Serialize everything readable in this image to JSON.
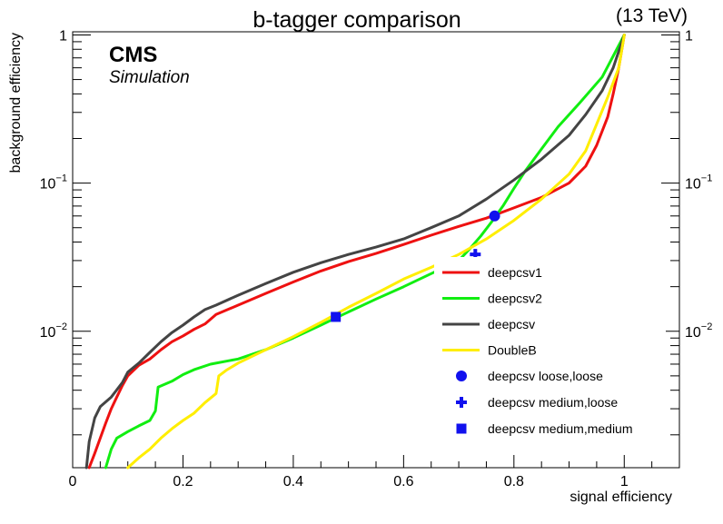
{
  "chart_data": {
    "type": "line",
    "title": "b-tagger comparison",
    "energy_label": "(13 TeV)",
    "experiment": "CMS",
    "subtitle": "Simulation",
    "xlabel": "signal efficiency",
    "ylabel": "background efficiency",
    "xlim": [
      0,
      1.1
    ],
    "ylim": [
      0.0012,
      1.05
    ],
    "yscale": "log",
    "legend_position": "bottom-right",
    "x_ticks": [
      0,
      0.2,
      0.4,
      0.6,
      0.8,
      1
    ],
    "x_tick_labels": [
      "0",
      "0.2",
      "0.4",
      "0.6",
      "0.8",
      "1"
    ],
    "y_ticks": [
      {
        "value": 1,
        "base": "1",
        "exp": ""
      },
      {
        "value": 0.1,
        "base": "10",
        "exp": "−1"
      },
      {
        "value": 0.01,
        "base": "10",
        "exp": "−2"
      }
    ],
    "series": [
      {
        "name": "deepcsv1",
        "color": "#ee1111",
        "points": [
          [
            0.03,
            0.0012
          ],
          [
            0.04,
            0.0015
          ],
          [
            0.05,
            0.0019
          ],
          [
            0.06,
            0.0024
          ],
          [
            0.07,
            0.003
          ],
          [
            0.08,
            0.0036
          ],
          [
            0.09,
            0.0043
          ],
          [
            0.1,
            0.005
          ],
          [
            0.12,
            0.0059
          ],
          [
            0.14,
            0.0065
          ],
          [
            0.16,
            0.0075
          ],
          [
            0.18,
            0.0085
          ],
          [
            0.2,
            0.0093
          ],
          [
            0.22,
            0.0103
          ],
          [
            0.24,
            0.0112
          ],
          [
            0.26,
            0.013
          ],
          [
            0.3,
            0.015
          ],
          [
            0.35,
            0.018
          ],
          [
            0.4,
            0.0215
          ],
          [
            0.45,
            0.0255
          ],
          [
            0.5,
            0.0295
          ],
          [
            0.55,
            0.0335
          ],
          [
            0.6,
            0.0385
          ],
          [
            0.65,
            0.0445
          ],
          [
            0.7,
            0.051
          ],
          [
            0.75,
            0.058
          ],
          [
            0.8,
            0.068
          ],
          [
            0.85,
            0.08
          ],
          [
            0.9,
            0.1
          ],
          [
            0.93,
            0.13
          ],
          [
            0.95,
            0.18
          ],
          [
            0.97,
            0.28
          ],
          [
            0.98,
            0.4
          ],
          [
            0.99,
            0.6
          ],
          [
            1.0,
            1.0
          ]
        ]
      },
      {
        "name": "deepcsv2",
        "color": "#11ee11",
        "points": [
          [
            0.06,
            0.0012
          ],
          [
            0.07,
            0.0016
          ],
          [
            0.08,
            0.0019
          ],
          [
            0.1,
            0.0021
          ],
          [
            0.12,
            0.0023
          ],
          [
            0.14,
            0.0025
          ],
          [
            0.15,
            0.0029
          ],
          [
            0.155,
            0.0042
          ],
          [
            0.18,
            0.0046
          ],
          [
            0.2,
            0.0051
          ],
          [
            0.22,
            0.0055
          ],
          [
            0.25,
            0.006
          ],
          [
            0.3,
            0.0065
          ],
          [
            0.35,
            0.0075
          ],
          [
            0.4,
            0.009
          ],
          [
            0.45,
            0.011
          ],
          [
            0.5,
            0.0135
          ],
          [
            0.55,
            0.0165
          ],
          [
            0.6,
            0.02
          ],
          [
            0.65,
            0.0245
          ],
          [
            0.7,
            0.03
          ],
          [
            0.72,
            0.036
          ],
          [
            0.74,
            0.044
          ],
          [
            0.76,
            0.055
          ],
          [
            0.78,
            0.07
          ],
          [
            0.8,
            0.092
          ],
          [
            0.82,
            0.12
          ],
          [
            0.85,
            0.17
          ],
          [
            0.88,
            0.24
          ],
          [
            0.92,
            0.35
          ],
          [
            0.96,
            0.52
          ],
          [
            1.0,
            1.0
          ]
        ]
      },
      {
        "name": "deepcsv",
        "color": "#444444",
        "points": [
          [
            0.025,
            0.0012
          ],
          [
            0.03,
            0.0018
          ],
          [
            0.04,
            0.0026
          ],
          [
            0.05,
            0.0031
          ],
          [
            0.07,
            0.0036
          ],
          [
            0.09,
            0.0045
          ],
          [
            0.1,
            0.0053
          ],
          [
            0.12,
            0.0061
          ],
          [
            0.14,
            0.0072
          ],
          [
            0.16,
            0.0085
          ],
          [
            0.18,
            0.0098
          ],
          [
            0.2,
            0.011
          ],
          [
            0.22,
            0.0125
          ],
          [
            0.24,
            0.014
          ],
          [
            0.26,
            0.015
          ],
          [
            0.3,
            0.0175
          ],
          [
            0.35,
            0.021
          ],
          [
            0.4,
            0.025
          ],
          [
            0.45,
            0.029
          ],
          [
            0.5,
            0.033
          ],
          [
            0.55,
            0.037
          ],
          [
            0.6,
            0.042
          ],
          [
            0.65,
            0.05
          ],
          [
            0.7,
            0.06
          ],
          [
            0.75,
            0.078
          ],
          [
            0.8,
            0.105
          ],
          [
            0.85,
            0.145
          ],
          [
            0.9,
            0.21
          ],
          [
            0.93,
            0.29
          ],
          [
            0.96,
            0.42
          ],
          [
            0.98,
            0.6
          ],
          [
            1.0,
            1.0
          ]
        ]
      },
      {
        "name": "DoubleB",
        "color": "#ffee00",
        "points": [
          [
            0.1,
            0.0012
          ],
          [
            0.12,
            0.0014
          ],
          [
            0.14,
            0.0016
          ],
          [
            0.16,
            0.0019
          ],
          [
            0.18,
            0.0022
          ],
          [
            0.2,
            0.0025
          ],
          [
            0.22,
            0.0028
          ],
          [
            0.24,
            0.0033
          ],
          [
            0.26,
            0.0038
          ],
          [
            0.265,
            0.005
          ],
          [
            0.28,
            0.0055
          ],
          [
            0.3,
            0.0061
          ],
          [
            0.35,
            0.0075
          ],
          [
            0.4,
            0.0092
          ],
          [
            0.45,
            0.0115
          ],
          [
            0.5,
            0.0145
          ],
          [
            0.55,
            0.018
          ],
          [
            0.6,
            0.0225
          ],
          [
            0.65,
            0.027
          ],
          [
            0.7,
            0.033
          ],
          [
            0.75,
            0.042
          ],
          [
            0.8,
            0.056
          ],
          [
            0.85,
            0.078
          ],
          [
            0.9,
            0.115
          ],
          [
            0.93,
            0.165
          ],
          [
            0.95,
            0.25
          ],
          [
            0.97,
            0.38
          ],
          [
            0.99,
            0.6
          ],
          [
            1.0,
            1.0
          ]
        ]
      }
    ],
    "markers": [
      {
        "name": "deepcsv loose,loose",
        "shape": "circle",
        "color": "#1111ee",
        "x": 0.765,
        "y": 0.06
      },
      {
        "name": "deepcsv medium,loose",
        "shape": "cross",
        "color": "#1111ee",
        "x": 0.73,
        "y": 0.033
      },
      {
        "name": "deepcsv medium,medium",
        "shape": "square",
        "color": "#1111ee",
        "x": 0.477,
        "y": 0.0125
      }
    ]
  }
}
